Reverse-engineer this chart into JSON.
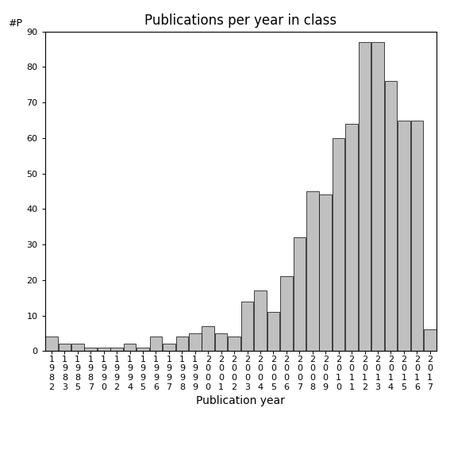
{
  "title": "Publications per year in class",
  "xlabel": "Publication year",
  "ylabel": "#P",
  "years": [
    "1982",
    "1983",
    "1985",
    "1987",
    "1990",
    "1992",
    "1994",
    "1995",
    "1996",
    "1997",
    "1998",
    "1999",
    "2000",
    "2001",
    "2002",
    "2003",
    "2004",
    "2005",
    "2006",
    "2007",
    "2008",
    "2009",
    "2010",
    "2011",
    "2012",
    "2013",
    "2014",
    "2015",
    "2016",
    "2017"
  ],
  "values": [
    4,
    2,
    2,
    1,
    1,
    1,
    2,
    1,
    4,
    2,
    4,
    5,
    7,
    5,
    4,
    14,
    17,
    11,
    21,
    32,
    45,
    44,
    60,
    64,
    87,
    87,
    76,
    65,
    65,
    6
  ],
  "bar_color": "#c0c0c0",
  "bar_edge_color": "#000000",
  "ylim": [
    0,
    90
  ],
  "yticks": [
    0,
    10,
    20,
    30,
    40,
    50,
    60,
    70,
    80,
    90
  ],
  "title_fontsize": 12,
  "axis_label_fontsize": 10,
  "tick_label_fontsize": 8,
  "ylabel_fontsize": 9,
  "background_color": "#ffffff"
}
